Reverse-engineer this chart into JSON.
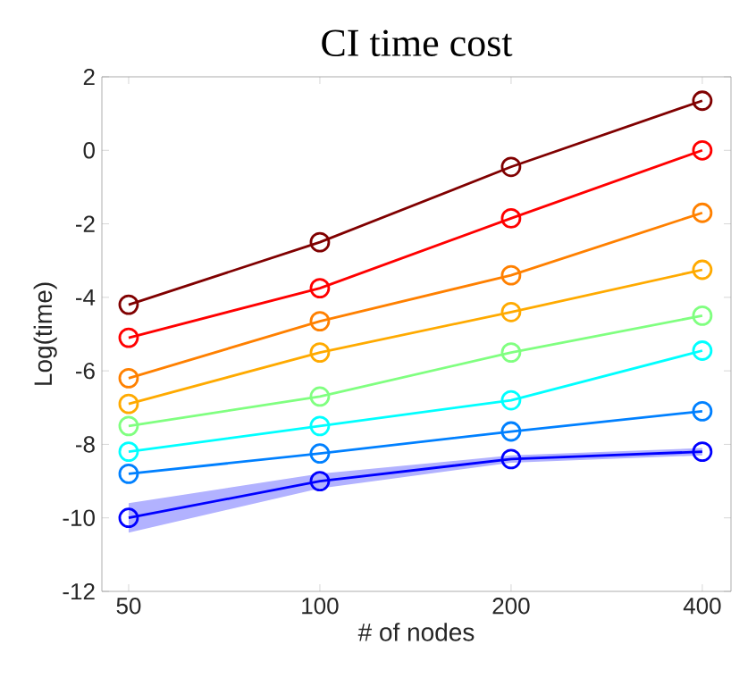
{
  "chart_data": {
    "type": "line",
    "title": "CI time cost",
    "xlabel": "# of nodes",
    "ylabel": "Log(time)",
    "categories": [
      "50",
      "100",
      "200",
      "400"
    ],
    "ylim": [
      -12,
      2
    ],
    "yticks": [
      -12,
      -10,
      -8,
      -6,
      -4,
      -2,
      0,
      2
    ],
    "marker": "circle",
    "line_style": "solid",
    "series": [
      {
        "color": "#800000",
        "values": [
          -4.2,
          -2.5,
          -0.45,
          1.35
        ]
      },
      {
        "color": "#ff0000",
        "values": [
          -5.1,
          -3.75,
          -1.85,
          0
        ]
      },
      {
        "color": "#ff8000",
        "values": [
          -6.2,
          -4.65,
          -3.4,
          -1.7
        ]
      },
      {
        "color": "#ffaa00",
        "values": [
          -6.9,
          -5.5,
          -4.4,
          -3.25
        ]
      },
      {
        "color": "#80ff80",
        "values": [
          -7.5,
          -6.7,
          -5.5,
          -4.5
        ]
      },
      {
        "color": "#00ffff",
        "values": [
          -8.2,
          -7.5,
          -6.8,
          -5.45
        ]
      },
      {
        "color": "#0080ff",
        "values": [
          -8.8,
          -8.25,
          -7.65,
          -7.1
        ]
      },
      {
        "color": "#0000ff",
        "values": [
          -10,
          -9.0,
          -8.4,
          -8.2
        ],
        "lower": [
          -10.4,
          -9.2,
          -8.5,
          -8.3
        ],
        "upper": [
          -9.6,
          -8.8,
          -8.3,
          -8.1
        ]
      }
    ]
  }
}
